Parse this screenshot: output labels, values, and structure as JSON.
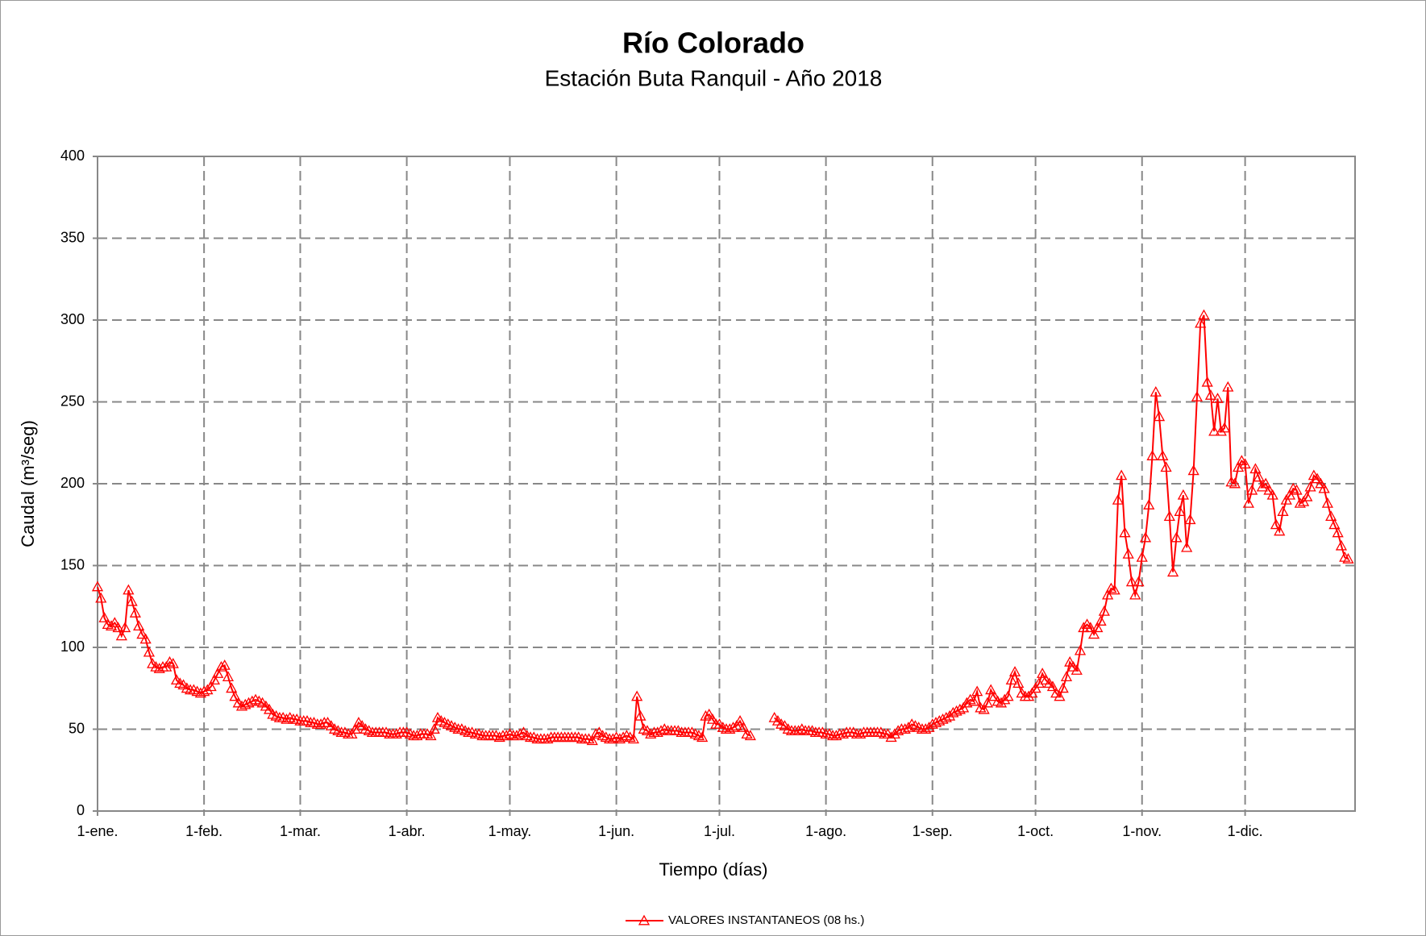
{
  "chart_data": {
    "type": "line",
    "title": "Río Colorado",
    "subtitle": "Estación Buta Ranquil - Año 2018",
    "x_label": "Tiempo (días)",
    "y_label": "Caudal (m³/seg)",
    "xlim": [
      0,
      366
    ],
    "ylim": [
      0,
      400
    ],
    "yticks": [
      0,
      50,
      100,
      150,
      200,
      250,
      300,
      350,
      400
    ],
    "xticks": [
      {
        "value": 0,
        "label": "1-ene."
      },
      {
        "value": 31,
        "label": "1-feb."
      },
      {
        "value": 59,
        "label": "1-mar."
      },
      {
        "value": 90,
        "label": "1-abr."
      },
      {
        "value": 120,
        "label": "1-may."
      },
      {
        "value": 151,
        "label": "1-jun."
      },
      {
        "value": 181,
        "label": "1-jul."
      },
      {
        "value": 212,
        "label": "1-ago."
      },
      {
        "value": 243,
        "label": "1-sep."
      },
      {
        "value": 273,
        "label": "1-oct."
      },
      {
        "value": 304,
        "label": "1-nov."
      },
      {
        "value": 334,
        "label": "1-dic."
      }
    ],
    "grid": true,
    "legend": "bottom",
    "x": [
      0,
      1,
      2,
      3,
      4,
      5,
      6,
      7,
      8,
      9,
      10,
      11,
      12,
      13,
      14,
      15,
      16,
      17,
      18,
      19,
      20,
      21,
      22,
      23,
      24,
      25,
      26,
      27,
      28,
      29,
      30,
      31,
      32,
      33,
      34,
      35,
      36,
      37,
      38,
      39,
      40,
      41,
      42,
      43,
      44,
      45,
      46,
      47,
      48,
      49,
      50,
      51,
      52,
      53,
      54,
      55,
      56,
      57,
      58,
      59,
      60,
      61,
      62,
      63,
      64,
      65,
      66,
      67,
      68,
      69,
      70,
      71,
      72,
      73,
      74,
      75,
      76,
      77,
      78,
      79,
      80,
      81,
      82,
      83,
      84,
      85,
      86,
      87,
      88,
      89,
      90,
      91,
      92,
      93,
      94,
      95,
      96,
      97,
      98,
      99,
      100,
      101,
      102,
      103,
      104,
      105,
      106,
      107,
      108,
      109,
      110,
      111,
      112,
      113,
      114,
      115,
      116,
      117,
      118,
      119,
      120,
      121,
      122,
      123,
      124,
      125,
      126,
      127,
      128,
      129,
      130,
      131,
      132,
      133,
      134,
      135,
      136,
      137,
      138,
      139,
      140,
      141,
      142,
      143,
      144,
      145,
      146,
      147,
      148,
      149,
      150,
      151,
      152,
      153,
      154,
      155,
      156,
      157,
      158,
      159,
      160,
      161,
      162,
      163,
      164,
      165,
      166,
      167,
      168,
      169,
      170,
      171,
      172,
      173,
      174,
      175,
      176,
      177,
      178,
      179,
      180,
      181,
      182,
      183,
      184,
      185,
      186,
      187,
      188,
      189,
      190,
      191,
      192,
      193,
      194,
      195,
      196,
      197,
      198,
      199,
      200,
      201,
      202,
      203,
      204,
      205,
      206,
      207,
      208,
      209,
      210,
      211,
      212,
      213,
      214,
      215,
      216,
      217,
      218,
      219,
      220,
      221,
      222,
      223,
      224,
      225,
      226,
      227,
      228,
      229,
      230,
      231,
      232,
      233,
      234,
      235,
      236,
      237,
      238,
      239,
      240,
      241,
      242,
      243,
      244,
      245,
      246,
      247,
      248,
      249,
      250,
      251,
      252,
      253,
      254,
      255,
      256,
      257,
      258,
      259,
      260,
      261,
      262,
      263,
      264,
      265,
      266,
      267,
      268,
      269,
      270,
      271,
      272,
      273,
      274,
      275,
      276,
      277,
      278,
      279,
      280,
      281,
      282,
      283,
      284,
      285,
      286,
      287,
      288,
      289,
      290,
      291,
      292,
      293,
      294,
      295,
      296,
      297,
      298,
      299,
      300,
      301,
      302,
      303,
      304,
      305,
      306,
      307,
      308,
      309,
      310,
      311,
      312,
      313,
      314,
      315,
      316,
      317,
      318,
      319,
      320,
      321,
      322,
      323,
      324,
      325,
      326,
      327,
      328,
      329,
      330,
      331,
      332,
      333,
      334,
      335,
      336,
      337,
      338,
      339,
      340,
      341,
      342,
      343,
      344,
      345,
      346,
      347,
      348,
      349,
      350,
      351,
      352,
      353,
      354,
      355,
      356,
      357,
      358,
      359,
      360,
      361,
      362,
      363,
      364
    ],
    "series": [
      {
        "name": "VALORES INSTANTANEOS (08 hs.)",
        "color": "#ff0000",
        "values": [
          137,
          130,
          118,
          114,
          113,
          115,
          112,
          107,
          112,
          135,
          128,
          121,
          113,
          108,
          105,
          97,
          90,
          88,
          87,
          88,
          88,
          91,
          90,
          80,
          78,
          77,
          75,
          74,
          74,
          73,
          72,
          73,
          74,
          76,
          80,
          84,
          88,
          89,
          82,
          75,
          70,
          66,
          64,
          65,
          66,
          67,
          68,
          67,
          66,
          64,
          62,
          59,
          58,
          57,
          57,
          56,
          57,
          56,
          56,
          55,
          55,
          55,
          54,
          54,
          53,
          53,
          54,
          54,
          52,
          50,
          49,
          48,
          48,
          47,
          47,
          50,
          54,
          52,
          50,
          49,
          48,
          48,
          48,
          48,
          48,
          47,
          47,
          47,
          48,
          48,
          48,
          47,
          46,
          46,
          47,
          47,
          47,
          46,
          50,
          57,
          55,
          54,
          53,
          52,
          51,
          50,
          50,
          49,
          48,
          48,
          47,
          47,
          46,
          46,
          46,
          46,
          46,
          45,
          46,
          46,
          47,
          46,
          46,
          47,
          48,
          46,
          45,
          45,
          44,
          44,
          44,
          44,
          45,
          45,
          45,
          45,
          45,
          45,
          45,
          45,
          45,
          44,
          44,
          44,
          43,
          47,
          48,
          46,
          45,
          44,
          44,
          45,
          44,
          45,
          46,
          45,
          44,
          70,
          58,
          50,
          49,
          47,
          48,
          48,
          49,
          50,
          49,
          49,
          49,
          49,
          48,
          48,
          48,
          48,
          47,
          46,
          45,
          58,
          59,
          56,
          53,
          53,
          51,
          50,
          50,
          51,
          52,
          55,
          51,
          47,
          46,
          null,
          null,
          null,
          null,
          null,
          null,
          57,
          55,
          53,
          52,
          50,
          49,
          49,
          49,
          50,
          49,
          49,
          49,
          48,
          48,
          48,
          47,
          47,
          46,
          46,
          47,
          47,
          48,
          48,
          48,
          47,
          47,
          48,
          48,
          48,
          48,
          48,
          48,
          47,
          47,
          45,
          47,
          49,
          50,
          50,
          51,
          53,
          52,
          51,
          50,
          50,
          51,
          53,
          54,
          55,
          56,
          57,
          58,
          60,
          61,
          62,
          63,
          66,
          68,
          67,
          73,
          63,
          62,
          66,
          74,
          70,
          67,
          66,
          68,
          70,
          80,
          85,
          78,
          72,
          70,
          70,
          72,
          75,
          78,
          84,
          80,
          78,
          76,
          72,
          70,
          75,
          82,
          91,
          88,
          86,
          98,
          112,
          114,
          112,
          108,
          112,
          116,
          122,
          132,
          136,
          135,
          190,
          205,
          170,
          157,
          140,
          132,
          140,
          155,
          167,
          187,
          217,
          256,
          241,
          217,
          210,
          180,
          146,
          167,
          183,
          193,
          161,
          178,
          208,
          253,
          298,
          303,
          262,
          254,
          232,
          252,
          232,
          234,
          259,
          201,
          200,
          210,
          214,
          212,
          188,
          196,
          209,
          204,
          198,
          200,
          196,
          193,
          175,
          171,
          183,
          190,
          193,
          197,
          196,
          188,
          189,
          192,
          198,
          205,
          203,
          200,
          197,
          188,
          180,
          175,
          170,
          162,
          155,
          154
        ]
      }
    ]
  }
}
